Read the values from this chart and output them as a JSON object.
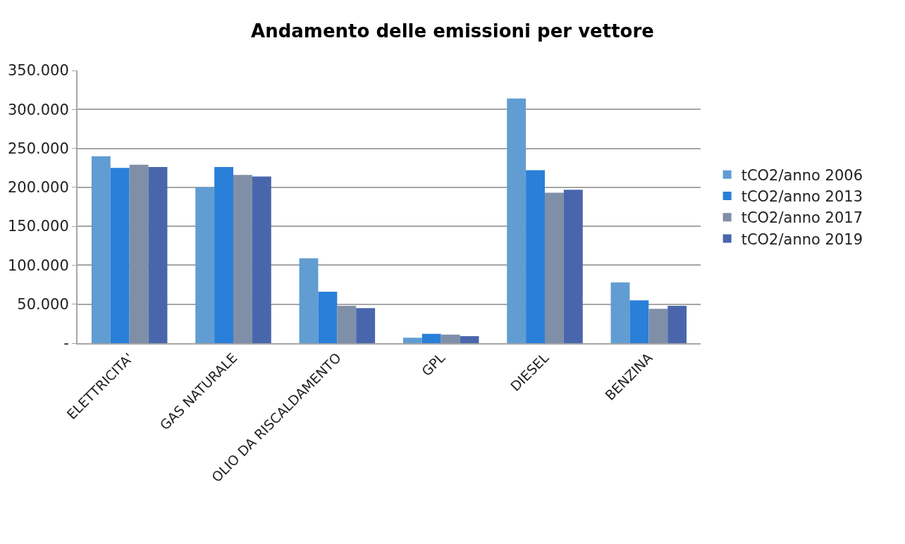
{
  "chart_data": {
    "type": "bar",
    "title": "Andamento delle emissioni per vettore",
    "categories": [
      "ELETTRICITA'",
      "GAS NATURALE",
      "OLIO DA RISCALDAMENTO",
      "GPL",
      "DIESEL",
      "BENZINA"
    ],
    "series": [
      {
        "name": "tCO2/anno 2006",
        "color": "#619dd2",
        "values": [
          240000,
          200000,
          109000,
          7000,
          314000,
          78000
        ]
      },
      {
        "name": "tCO2/anno 2013",
        "color": "#2a7fd8",
        "values": [
          225000,
          226000,
          66000,
          12000,
          222000,
          55000
        ]
      },
      {
        "name": "tCO2/anno 2017",
        "color": "#808fa8",
        "values": [
          229000,
          216000,
          48000,
          11000,
          193000,
          44000
        ]
      },
      {
        "name": "tCO2/anno 2019",
        "color": "#4966ad",
        "values": [
          226000,
          214000,
          45000,
          9000,
          197000,
          48000
        ]
      }
    ],
    "ylim": [
      0,
      350000
    ],
    "yticks": [
      {
        "value": 0,
        "label": "-"
      },
      {
        "value": 50000,
        "label": "50.000"
      },
      {
        "value": 100000,
        "label": "100.000"
      },
      {
        "value": 150000,
        "label": "150.000"
      },
      {
        "value": 200000,
        "label": "200.000"
      },
      {
        "value": 250000,
        "label": "250.000"
      },
      {
        "value": 300000,
        "label": "300.000"
      },
      {
        "value": 350000,
        "label": "350.000"
      }
    ],
    "grid": "y",
    "legend": "right"
  }
}
